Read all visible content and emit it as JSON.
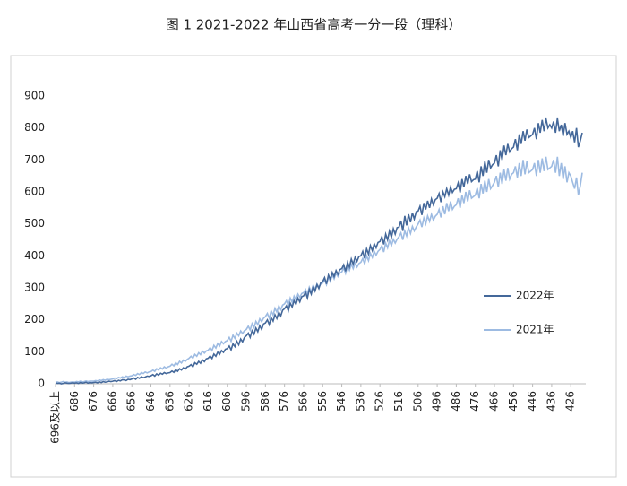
{
  "chart_data": {
    "type": "line",
    "title": "图 1 2021-2022 年山西省高考一分一段（理科）",
    "categories": [
      "696及以上",
      null,
      null,
      null,
      null,
      null,
      null,
      null,
      null,
      null,
      "686",
      null,
      null,
      null,
      null,
      null,
      null,
      null,
      null,
      null,
      "676",
      null,
      null,
      null,
      null,
      null,
      null,
      null,
      null,
      null,
      "666",
      null,
      null,
      null,
      null,
      null,
      null,
      null,
      null,
      null,
      "656",
      null,
      null,
      null,
      null,
      null,
      null,
      null,
      null,
      null,
      "646",
      null,
      null,
      null,
      null,
      null,
      null,
      null,
      null,
      null,
      "636",
      null,
      null,
      null,
      null,
      null,
      null,
      null,
      null,
      null,
      "626",
      null,
      null,
      null,
      null,
      null,
      null,
      null,
      null,
      null,
      "616",
      null,
      null,
      null,
      null,
      null,
      null,
      null,
      null,
      null,
      "606",
      null,
      null,
      null,
      null,
      null,
      null,
      null,
      null,
      null,
      "596",
      null,
      null,
      null,
      null,
      null,
      null,
      null,
      null,
      null,
      "586",
      null,
      null,
      null,
      null,
      null,
      null,
      null,
      null,
      null,
      "576",
      null,
      null,
      null,
      null,
      null,
      null,
      null,
      null,
      null,
      "566",
      null,
      null,
      null,
      null,
      null,
      null,
      null,
      null,
      null,
      "556",
      null,
      null,
      null,
      null,
      null,
      null,
      null,
      null,
      null,
      "546",
      null,
      null,
      null,
      null,
      null,
      null,
      null,
      null,
      null,
      "536",
      null,
      null,
      null,
      null,
      null,
      null,
      null,
      null,
      null,
      "526",
      null,
      null,
      null,
      null,
      null,
      null,
      null,
      null,
      null,
      "516",
      null,
      null,
      null,
      null,
      null,
      null,
      null,
      null,
      null,
      "506",
      null,
      null,
      null,
      null,
      null,
      null,
      null,
      null,
      null,
      "496",
      null,
      null,
      null,
      null,
      null,
      null,
      null,
      null,
      null,
      "486",
      null,
      null,
      null,
      null,
      null,
      null,
      null,
      null,
      null,
      "476",
      null,
      null,
      null,
      null,
      null,
      null,
      null,
      null,
      null,
      "466",
      null,
      null,
      null,
      null,
      null,
      null,
      null,
      null,
      null,
      "456",
      null,
      null,
      null,
      null,
      null,
      null,
      null,
      null,
      null,
      "446",
      null,
      null,
      null,
      null,
      null,
      null,
      null,
      null,
      null,
      "436",
      null,
      null,
      null,
      null,
      null,
      null,
      null,
      null,
      null,
      "426",
      null,
      null,
      null,
      null,
      null,
      null
    ],
    "series": [
      {
        "name": "2022年",
        "color": "#44689a",
        "values": [
          3,
          1,
          2,
          0,
          1,
          3,
          2,
          1,
          2,
          3,
          2,
          3,
          1,
          4,
          2,
          3,
          5,
          2,
          4,
          3,
          4,
          5,
          3,
          6,
          4,
          7,
          5,
          6,
          8,
          7,
          8,
          10,
          7,
          11,
          9,
          13,
          12,
          10,
          14,
          13,
          15,
          18,
          14,
          20,
          17,
          22,
          19,
          21,
          24,
          23,
          25,
          29,
          24,
          31,
          27,
          33,
          30,
          35,
          32,
          34,
          35,
          40,
          36,
          44,
          39,
          47,
          43,
          50,
          46,
          53,
          55,
          60,
          53,
          66,
          61,
          70,
          64,
          75,
          69,
          78,
          80,
          87,
          79,
          93,
          86,
          99,
          92,
          104,
          98,
          108,
          110,
          118,
          106,
          125,
          116,
          133,
          122,
          140,
          131,
          145,
          150,
          158,
          145,
          166,
          155,
          174,
          163,
          182,
          170,
          187,
          190,
          200,
          185,
          207,
          196,
          216,
          204,
          224,
          212,
          230,
          235,
          244,
          228,
          252,
          240,
          260,
          248,
          268,
          256,
          272,
          275,
          286,
          268,
          295,
          280,
          304,
          290,
          310,
          298,
          316,
          320,
          332,
          312,
          340,
          326,
          348,
          335,
          354,
          342,
          357,
          360,
          372,
          352,
          380,
          365,
          390,
          374,
          396,
          383,
          398,
          400,
          414,
          392,
          422,
          405,
          432,
          416,
          438,
          425,
          442,
          445,
          460,
          436,
          468,
          450,
          478,
          458,
          485,
          468,
          488,
          490,
          510,
          478,
          525,
          495,
          530,
          505,
          535,
          515,
          538,
          540,
          555,
          528,
          565,
          545,
          572,
          550,
          578,
          560,
          576,
          580,
          595,
          568,
          600,
          585,
          610,
          590,
          615,
          598,
          608,
          610,
          628,
          598,
          640,
          615,
          650,
          625,
          655,
          632,
          638,
          640,
          665,
          630,
          680,
          650,
          695,
          660,
          700,
          675,
          685,
          690,
          715,
          680,
          730,
          700,
          745,
          715,
          750,
          725,
          735,
          740,
          765,
          730,
          780,
          750,
          790,
          760,
          795,
          770,
          775,
          780,
          800,
          765,
          815,
          785,
          825,
          790,
          830,
          800,
          810,
          800,
          820,
          785,
          830,
          790,
          810,
          775,
          815,
          780,
          790,
          770,
          790,
          755,
          800,
          740,
          760,
          785
        ]
      },
      {
        "name": "2021年",
        "color": "#9dbbe2",
        "values": [
          5,
          6,
          4,
          5,
          7,
          5,
          6,
          4,
          5,
          6,
          5,
          7,
          6,
          8,
          6,
          7,
          9,
          7,
          8,
          8,
          8,
          10,
          9,
          12,
          10,
          13,
          11,
          14,
          13,
          14,
          15,
          18,
          16,
          20,
          18,
          22,
          20,
          24,
          22,
          24,
          25,
          29,
          26,
          32,
          29,
          35,
          32,
          37,
          34,
          37,
          38,
          43,
          39,
          47,
          43,
          50,
          46,
          53,
          49,
          53,
          55,
          61,
          56,
          66,
          60,
          70,
          65,
          74,
          70,
          76,
          80,
          86,
          80,
          92,
          86,
          97,
          91,
          102,
          96,
          103,
          105,
          113,
          104,
          120,
          112,
          126,
          118,
          132,
          125,
          132,
          135,
          145,
          133,
          152,
          142,
          158,
          150,
          165,
          157,
          166,
          170,
          180,
          168,
          188,
          176,
          195,
          185,
          203,
          194,
          205,
          210,
          220,
          205,
          228,
          215,
          236,
          224,
          244,
          232,
          246,
          250,
          260,
          245,
          268,
          255,
          274,
          262,
          280,
          270,
          282,
          285,
          295,
          280,
          302,
          288,
          308,
          296,
          312,
          302,
          312,
          315,
          325,
          310,
          334,
          320,
          340,
          328,
          346,
          335,
          346,
          350,
          362,
          345,
          368,
          355,
          374,
          360,
          378,
          365,
          376,
          380,
          392,
          375,
          400,
          385,
          408,
          395,
          414,
          402,
          414,
          420,
          432,
          412,
          440,
          425,
          448,
          432,
          452,
          440,
          452,
          460,
          472,
          450,
          478,
          462,
          488,
          470,
          492,
          478,
          490,
          500,
          512,
          490,
          518,
          500,
          525,
          508,
          530,
          512,
          524,
          530,
          545,
          520,
          555,
          530,
          565,
          540,
          570,
          545,
          555,
          560,
          580,
          550,
          590,
          565,
          600,
          570,
          605,
          580,
          585,
          590,
          612,
          580,
          625,
          595,
          635,
          600,
          640,
          610,
          620,
          630,
          650,
          615,
          660,
          625,
          670,
          635,
          675,
          640,
          655,
          660,
          680,
          645,
          690,
          650,
          700,
          655,
          695,
          660,
          665,
          670,
          690,
          650,
          700,
          660,
          705,
          665,
          710,
          670,
          675,
          680,
          700,
          660,
          710,
          650,
          690,
          640,
          680,
          630,
          660,
          650,
          630,
          610,
          645,
          590,
          620,
          660
        ]
      }
    ],
    "ylim": [
      0,
      900
    ],
    "yticks": [
      0,
      100,
      200,
      300,
      400,
      500,
      600,
      700,
      800,
      900
    ],
    "grid": false,
    "legend": "right"
  }
}
